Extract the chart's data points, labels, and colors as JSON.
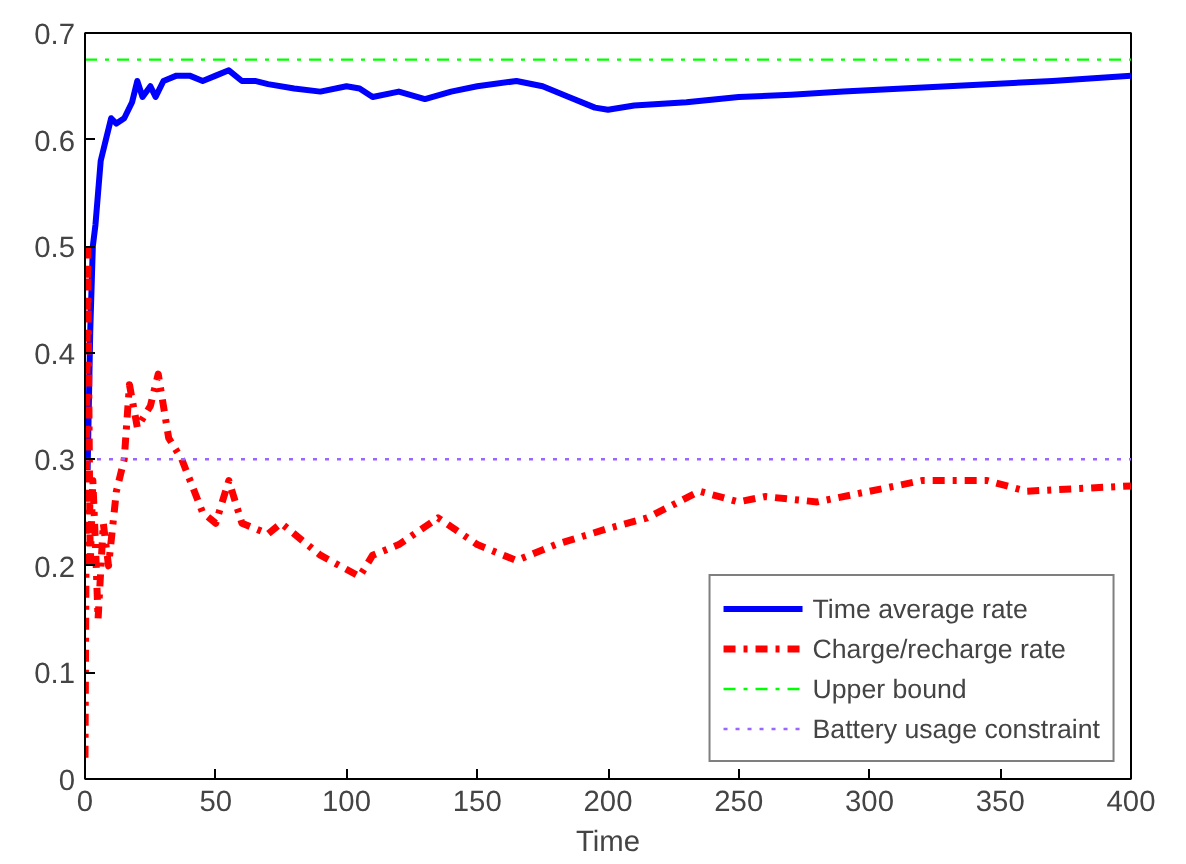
{
  "chart_data": {
    "type": "line",
    "xlabel": "Time",
    "xlim": [
      0,
      400
    ],
    "ylim": [
      0,
      0.7
    ],
    "xticks": [
      0,
      50,
      100,
      150,
      200,
      250,
      300,
      350,
      400
    ],
    "yticks": [
      0,
      0.1,
      0.2,
      0.3,
      0.4,
      0.5,
      0.6,
      0.7
    ],
    "grid": false,
    "legend": "bottom right",
    "series": [
      {
        "name": "Time average rate",
        "color": "#0000ff",
        "line_style": "solid",
        "x": [
          1,
          2,
          3,
          4,
          5,
          6,
          8,
          10,
          12,
          15,
          18,
          20,
          22,
          25,
          27,
          30,
          35,
          40,
          45,
          50,
          55,
          60,
          65,
          70,
          80,
          90,
          100,
          105,
          110,
          120,
          130,
          140,
          150,
          165,
          175,
          185,
          195,
          200,
          210,
          230,
          250,
          270,
          290,
          330,
          370,
          400
        ],
        "values": [
          0.29,
          0.42,
          0.5,
          0.52,
          0.55,
          0.58,
          0.6,
          0.62,
          0.615,
          0.62,
          0.635,
          0.655,
          0.64,
          0.65,
          0.64,
          0.655,
          0.66,
          0.66,
          0.655,
          0.66,
          0.665,
          0.655,
          0.655,
          0.652,
          0.648,
          0.645,
          0.65,
          0.648,
          0.64,
          0.645,
          0.638,
          0.645,
          0.65,
          0.655,
          0.65,
          0.64,
          0.63,
          0.628,
          0.632,
          0.635,
          0.64,
          0.642,
          0.645,
          0.65,
          0.655,
          0.66
        ]
      },
      {
        "name": "Charge/recharge rate",
        "color": "#ff0000",
        "line_style": "dashdot",
        "x": [
          0,
          1,
          2,
          3,
          4,
          5,
          7,
          9,
          12,
          15,
          17,
          20,
          25,
          28,
          32,
          37,
          45,
          50,
          55,
          60,
          70,
          75,
          90,
          105,
          110,
          120,
          135,
          150,
          165,
          180,
          200,
          215,
          235,
          250,
          260,
          280,
          300,
          320,
          345,
          360,
          400
        ],
        "values": [
          0.02,
          0.5,
          0.2,
          0.28,
          0.22,
          0.15,
          0.24,
          0.2,
          0.27,
          0.3,
          0.37,
          0.33,
          0.35,
          0.38,
          0.32,
          0.3,
          0.25,
          0.24,
          0.28,
          0.24,
          0.23,
          0.24,
          0.21,
          0.19,
          0.21,
          0.22,
          0.245,
          0.22,
          0.205,
          0.22,
          0.235,
          0.245,
          0.27,
          0.26,
          0.265,
          0.26,
          0.27,
          0.28,
          0.28,
          0.27,
          0.275
        ]
      },
      {
        "name": "Upper bound",
        "color": "#00ff00",
        "line_style": "dashdot",
        "x": [
          0,
          400
        ],
        "values": [
          0.675,
          0.675
        ]
      },
      {
        "name": "Battery usage constraint",
        "color": "#9966ff",
        "line_style": "dotted",
        "x": [
          0,
          400
        ],
        "values": [
          0.3,
          0.3
        ]
      }
    ]
  }
}
